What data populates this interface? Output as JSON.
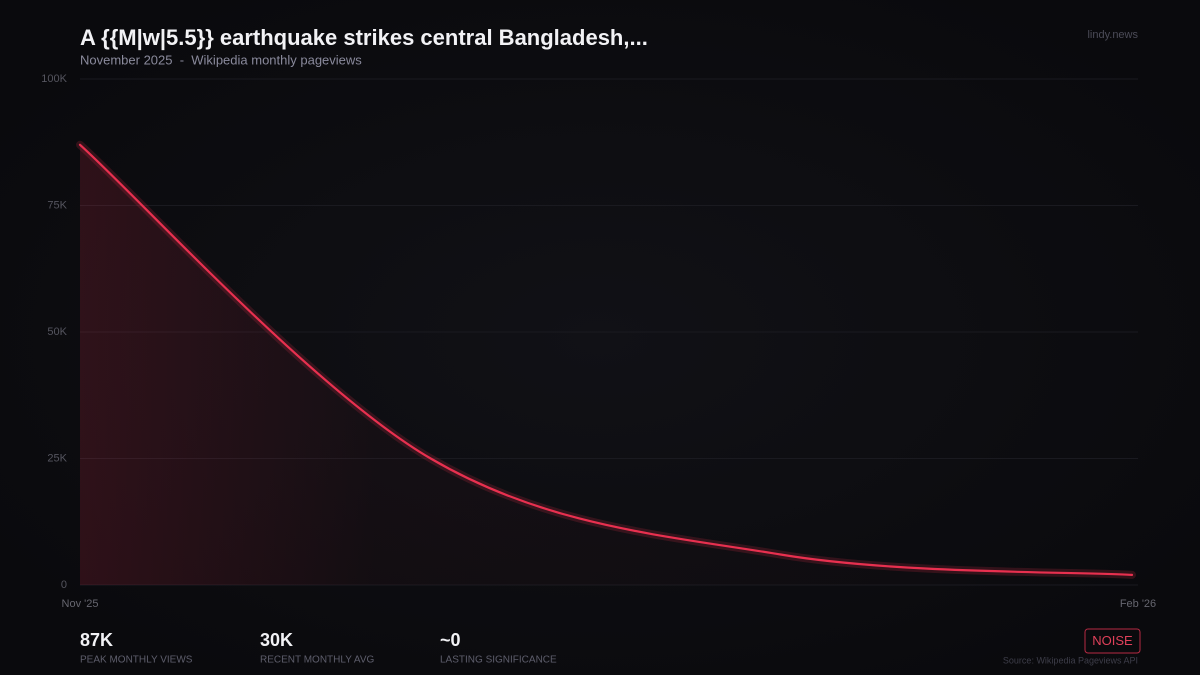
{
  "chart_data": {
    "type": "line",
    "title": "A {{M|w|5.5}} earthquake strikes central Bangladesh,...",
    "subtitle": "November 2025  -  Wikipedia monthly pageviews",
    "brand": "lindy.news",
    "categories": [
      "Nov '25",
      null,
      null,
      "Feb '26"
    ],
    "series": [
      {
        "name": "Monthly pageviews",
        "color": "#e8304f",
        "values": [
          87000,
          25000,
          6000,
          2000
        ]
      }
    ],
    "ylim": [
      0,
      100000
    ],
    "yticks": [
      0,
      {
        "value": 25000,
        "label": "25K"
      },
      {
        "value": 50000,
        "label": "50K"
      },
      {
        "value": 75000,
        "label": "75K"
      },
      {
        "value": 100000,
        "label": "100K"
      }
    ],
    "grid": true,
    "stats": [
      {
        "value": "87K",
        "label": "PEAK MONTHLY VIEWS"
      },
      {
        "value": "30K",
        "label": "RECENT MONTHLY AVG"
      },
      {
        "value": "~0",
        "label": "LASTING SIGNIFICANCE"
      }
    ],
    "badge": "NOISE",
    "source": "Source: Wikipedia Pageviews API"
  }
}
